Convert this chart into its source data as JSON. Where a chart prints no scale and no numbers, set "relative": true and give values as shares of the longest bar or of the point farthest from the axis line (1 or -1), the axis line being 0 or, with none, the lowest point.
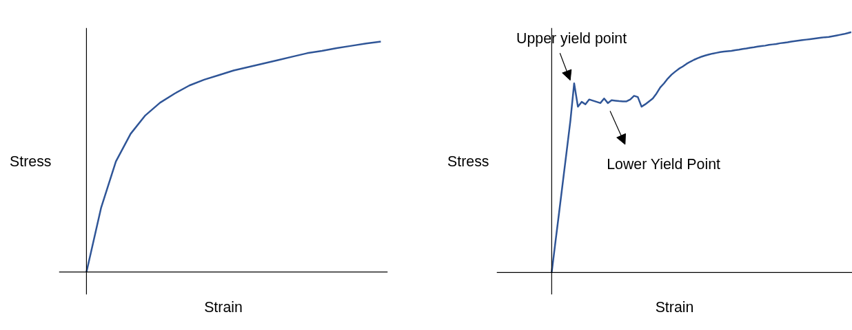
{
  "chart_data": [
    {
      "type": "line",
      "relative": true,
      "xlabel": "Strain",
      "ylabel": "Stress",
      "categories": [
        null,
        null,
        null,
        null,
        null,
        null,
        null,
        null,
        null,
        null,
        null,
        null,
        null,
        null,
        null,
        null,
        null,
        null,
        null,
        null,
        null
      ],
      "series": [
        {
          "color": "#2f5597",
          "values": [
            0,
            0.28,
            0.48,
            0.6,
            0.68,
            0.735,
            0.775,
            0.81,
            0.835,
            0.855,
            0.875,
            0.89,
            0.905,
            0.92,
            0.935,
            0.95,
            0.96,
            0.972,
            0.982,
            0.992,
            1
          ]
        }
      ]
    },
    {
      "type": "line",
      "relative": true,
      "xlabel": "Strain",
      "ylabel": "Stress",
      "annotations": [
        "Upper yield point",
        "Lower Yield Point"
      ],
      "categories": [
        null,
        null,
        null,
        null,
        null,
        null,
        null,
        null,
        null,
        null,
        null,
        null,
        null,
        null,
        null,
        null,
        null,
        null,
        null,
        null,
        null,
        null,
        null,
        null,
        null,
        null,
        null,
        null,
        null,
        null,
        null,
        null,
        null,
        null,
        null,
        null,
        null,
        null,
        null,
        null,
        null,
        null,
        null,
        null,
        null,
        null,
        null,
        null,
        null,
        null,
        null,
        null,
        null,
        null,
        null,
        null,
        null,
        null,
        null,
        null,
        null,
        null,
        null,
        null,
        null,
        null,
        null,
        null,
        null,
        null,
        null,
        null,
        null,
        null,
        null,
        null,
        null,
        null,
        null,
        null,
        null
      ],
      "series": [
        {
          "color": "#2f5597",
          "values": [
            0,
            0.127,
            0.252,
            0.379,
            0.505,
            0.632,
            0.787,
            0.69,
            0.71,
            0.7,
            0.72,
            0.715,
            0.71,
            0.705,
            0.724,
            0.705,
            0.717,
            0.715,
            0.713,
            0.712,
            0.712,
            0.72,
            0.735,
            0.73,
            0.69,
            0.7,
            0.712,
            0.724,
            0.745,
            0.77,
            0.787,
            0.807,
            0.823,
            0.836,
            0.848,
            0.857,
            0.868,
            0.877,
            0.885,
            0.892,
            0.898,
            0.903,
            0.907,
            0.911,
            0.914,
            0.917,
            0.919,
            0.921,
            0.922,
            0.925,
            0.927,
            0.93,
            0.932,
            0.935,
            0.937,
            0.94,
            0.942,
            0.944,
            0.947,
            0.949,
            0.951,
            0.954,
            0.956,
            0.958,
            0.961,
            0.963,
            0.965,
            0.967,
            0.969,
            0.971,
            0.973,
            0.975,
            0.977,
            0.979,
            0.98,
            0.983,
            0.986,
            0.989,
            0.992,
            0.996,
            1
          ]
        }
      ]
    }
  ]
}
